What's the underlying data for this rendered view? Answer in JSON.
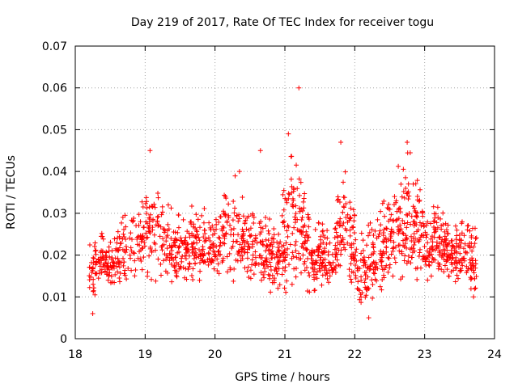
{
  "chart_data": {
    "type": "scatter",
    "title": "Day 219 of 2017, Rate Of TEC Index for receiver togu",
    "xlabel": "GPS time / hours",
    "ylabel": "ROTI / TECUs",
    "xlim": [
      18,
      24
    ],
    "ylim": [
      0,
      0.07
    ],
    "xticks": [
      "18",
      "19",
      "20",
      "21",
      "22",
      "23",
      "24"
    ],
    "yticks": [
      "0",
      "0.01",
      "0.02",
      "0.03",
      "0.04",
      "0.05",
      "0.06",
      "0.07"
    ],
    "grid": true,
    "marker": "plus",
    "marker_color": "#ff0000",
    "x_data_range": [
      18.2,
      23.75
    ],
    "typical_band": [
      0.01,
      0.03
    ],
    "notable_points": [
      {
        "x": 18.25,
        "y": 0.006
      },
      {
        "x": 19.07,
        "y": 0.045
      },
      {
        "x": 20.35,
        "y": 0.04
      },
      {
        "x": 20.65,
        "y": 0.045
      },
      {
        "x": 21.05,
        "y": 0.049
      },
      {
        "x": 21.2,
        "y": 0.06
      },
      {
        "x": 21.8,
        "y": 0.047
      },
      {
        "x": 22.2,
        "y": 0.005
      },
      {
        "x": 22.75,
        "y": 0.047
      },
      {
        "x": 23.7,
        "y": 0.01
      }
    ],
    "density_profile": [
      {
        "x": 18.2,
        "low": 0.008,
        "high": 0.026
      },
      {
        "x": 18.5,
        "low": 0.01,
        "high": 0.026
      },
      {
        "x": 18.8,
        "low": 0.009,
        "high": 0.032
      },
      {
        "x": 19.1,
        "low": 0.01,
        "high": 0.045
      },
      {
        "x": 19.4,
        "low": 0.012,
        "high": 0.03
      },
      {
        "x": 19.7,
        "low": 0.01,
        "high": 0.033
      },
      {
        "x": 20.0,
        "low": 0.012,
        "high": 0.03
      },
      {
        "x": 20.3,
        "low": 0.012,
        "high": 0.04
      },
      {
        "x": 20.6,
        "low": 0.01,
        "high": 0.033
      },
      {
        "x": 20.9,
        "low": 0.009,
        "high": 0.029
      },
      {
        "x": 21.1,
        "low": 0.01,
        "high": 0.049
      },
      {
        "x": 21.4,
        "low": 0.01,
        "high": 0.028
      },
      {
        "x": 21.7,
        "low": 0.01,
        "high": 0.03
      },
      {
        "x": 21.85,
        "low": 0.01,
        "high": 0.045
      },
      {
        "x": 22.1,
        "low": 0.006,
        "high": 0.026
      },
      {
        "x": 22.4,
        "low": 0.008,
        "high": 0.034
      },
      {
        "x": 22.75,
        "low": 0.01,
        "high": 0.047
      },
      {
        "x": 23.0,
        "low": 0.012,
        "high": 0.034
      },
      {
        "x": 23.3,
        "low": 0.012,
        "high": 0.03
      },
      {
        "x": 23.75,
        "low": 0.009,
        "high": 0.029
      }
    ]
  }
}
